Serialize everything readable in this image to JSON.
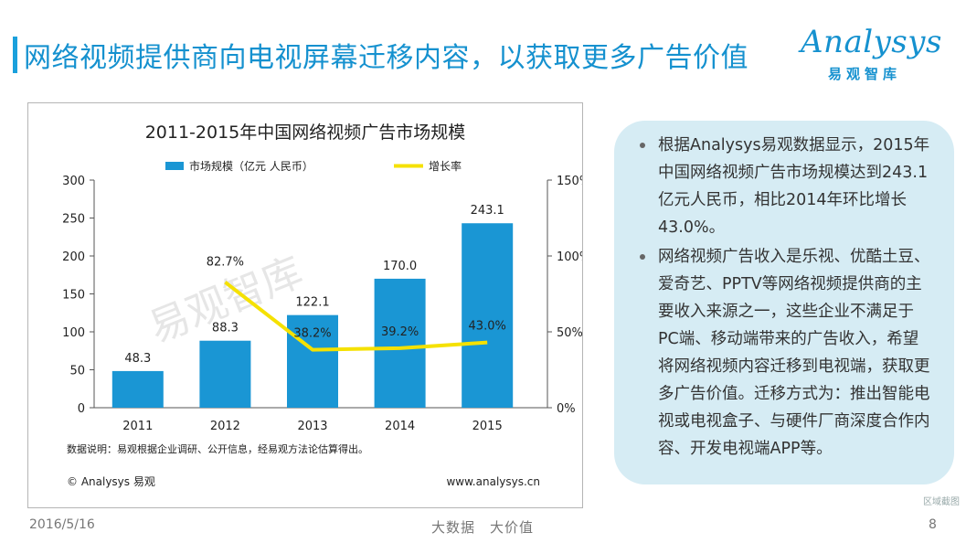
{
  "header": {
    "title": "网络视频提供商向电视屏幕迁移内容，以获取更多广告价值",
    "logo_en": "Analysys",
    "logo_cn": "易观智库",
    "accent_color": "#1591cf"
  },
  "chart_data": {
    "type": "bar",
    "title": "2011-2015年中国网络视频广告市场规模",
    "categories": [
      "2011",
      "2012",
      "2013",
      "2014",
      "2015"
    ],
    "series": [
      {
        "name": "市场规模（亿元 人民币）",
        "kind": "bar",
        "axis": "left",
        "color": "#1a96d4",
        "values": [
          48.3,
          88.3,
          122.1,
          170.0,
          243.1
        ],
        "labels": [
          "48.3",
          "88.3",
          "122.1",
          "170.0",
          "243.1"
        ]
      },
      {
        "name": "增长率",
        "kind": "line",
        "axis": "right",
        "color": "#f5e100",
        "values": [
          null,
          82.7,
          38.2,
          39.2,
          43.0
        ],
        "labels": [
          "",
          "82.7%",
          "38.2%",
          "39.2%",
          "43.0%"
        ]
      }
    ],
    "y_left": {
      "min": 0,
      "max": 300,
      "ticks": [
        "0",
        "50",
        "100",
        "150",
        "200",
        "250",
        "300"
      ]
    },
    "y_right": {
      "min": 0,
      "max": 150,
      "ticks": [
        "0%",
        "50%",
        "100%",
        "150%"
      ]
    },
    "legend": "top",
    "note": "数据说明：易观根据企业调研、公开信息，经易观方法论估算得出。",
    "copyright": "© Analysys 易观",
    "website": "www.analysys.cn",
    "watermark": "易观智库"
  },
  "info": {
    "bullets": [
      "根据Analysys易观数据显示，2015年中国网络视频广告市场规模达到243.1亿元人民币，相比2014年环比增长43.0%。",
      "网络视频广告收入是乐视、优酷土豆、爱奇艺、PPTV等网络视频提供商的主要收入来源之一，这些企业不满足于PC端、移动端带来的广告收入，希望将网络视频内容迁移到电视端，获取更多广告价值。迁移方式为：推出智能电视或电视盒子、与硬件厂商深度合作内容、开发电视端APP等。"
    ]
  },
  "footer": {
    "date": "2016/5/16",
    "slogan": "大数据　大价值",
    "page": "8",
    "corner_tag": "区域截图"
  }
}
